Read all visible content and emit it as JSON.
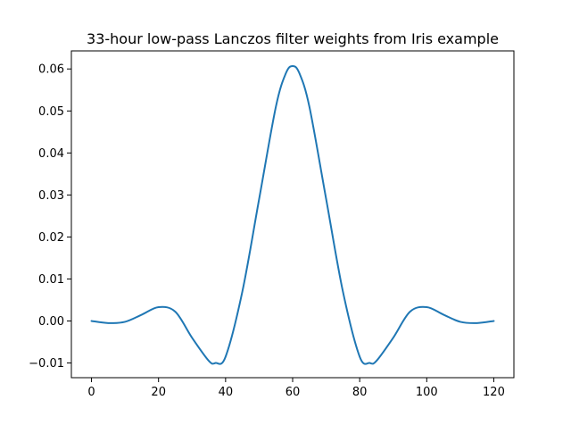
{
  "chart_data": {
    "type": "line",
    "title": "33-hour low-pass Lanczos filter weights from Iris example",
    "xlabel": "",
    "ylabel": "",
    "xlim": [
      -6,
      126
    ],
    "ylim": [
      -0.0135,
      0.0643
    ],
    "x_ticks": [
      0,
      20,
      40,
      60,
      80,
      100,
      120
    ],
    "x_tick_labels": [
      "0",
      "20",
      "40",
      "60",
      "80",
      "100",
      "120"
    ],
    "y_ticks": [
      -0.01,
      0.0,
      0.01,
      0.02,
      0.03,
      0.04,
      0.05,
      0.06
    ],
    "y_tick_labels": [
      "−0.01",
      "0.00",
      "0.01",
      "0.02",
      "0.03",
      "0.04",
      "0.05",
      "0.06"
    ],
    "grid": false,
    "legend": "none",
    "series": [
      {
        "color": "#1f77b4",
        "x": [
          0,
          5,
          10,
          15,
          20,
          25,
          30,
          35,
          37,
          40,
          45,
          50,
          55,
          58,
          60,
          62,
          65,
          70,
          75,
          80,
          83,
          85,
          90,
          95,
          100,
          105,
          110,
          115,
          120
        ],
        "y": [
          0.0,
          -0.0005,
          -0.0002,
          0.0015,
          0.0033,
          0.0022,
          -0.004,
          -0.0095,
          -0.01,
          -0.0085,
          0.007,
          0.029,
          0.051,
          0.059,
          0.0607,
          0.059,
          0.051,
          0.029,
          0.007,
          -0.0085,
          -0.01,
          -0.0095,
          -0.004,
          0.0022,
          0.0033,
          0.0015,
          -0.0002,
          -0.0005,
          0.0
        ]
      }
    ]
  }
}
